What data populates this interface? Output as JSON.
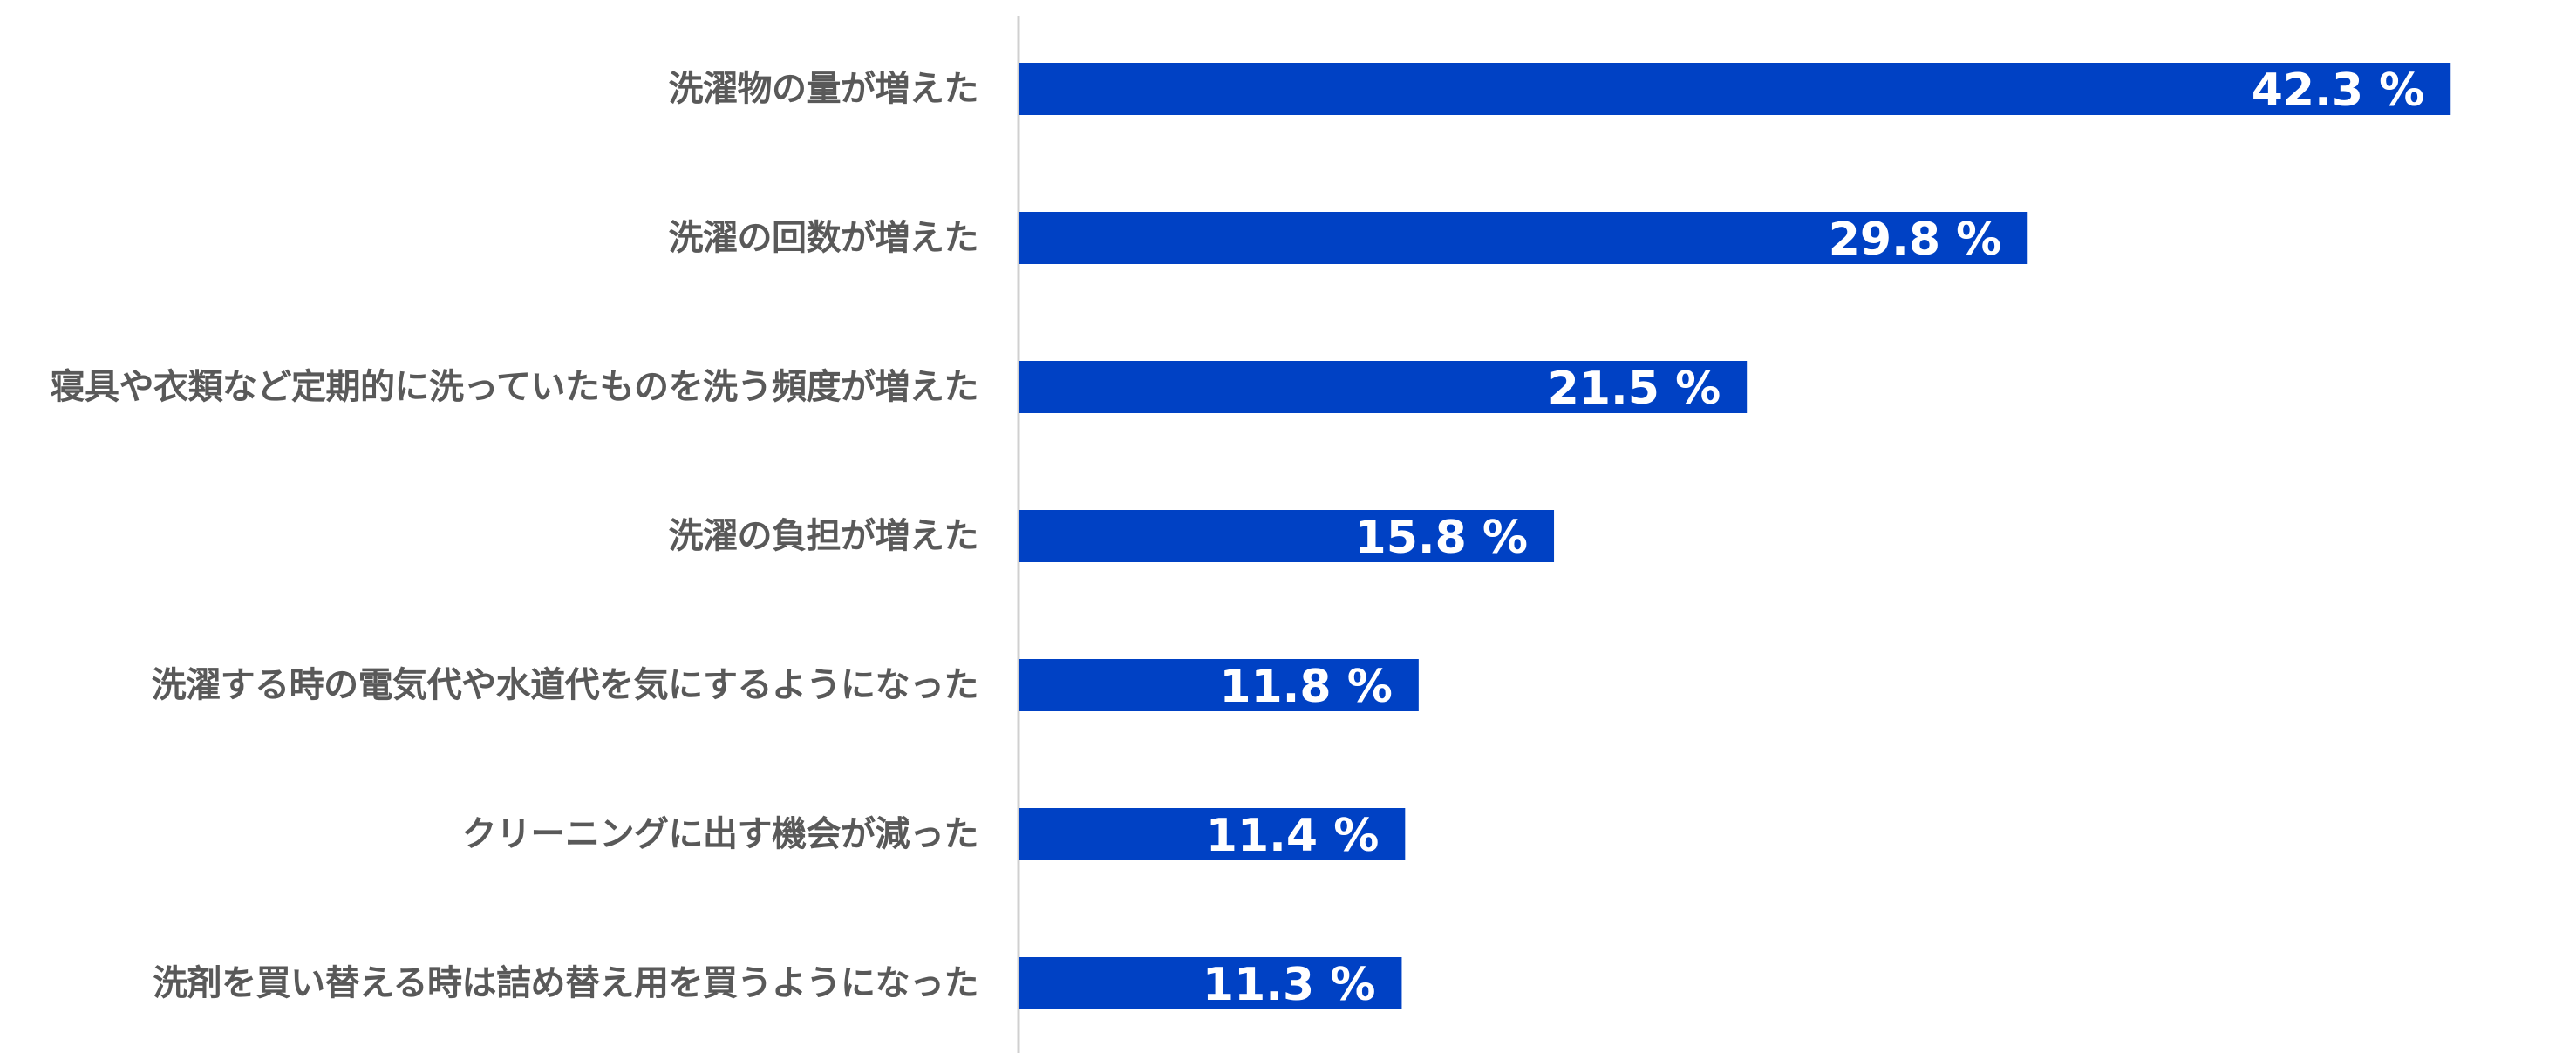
{
  "chart_data": {
    "type": "bar",
    "orientation": "horizontal",
    "categories": [
      "洗濯物の量が増えた",
      "洗濯の回数が増えた",
      "寝具や衣類など定期的に洗っていたものを洗う頻度が増えた",
      "洗濯の負担が増えた",
      "洗濯する時の電気代や水道代を気にするようになった",
      "クリーニングに出す機会が減った",
      "洗剤を買い替える時は詰め替え用を買うようになった"
    ],
    "values": [
      42.3,
      29.8,
      21.5,
      15.8,
      11.8,
      11.4,
      11.3
    ],
    "data_labels": [
      "42.3 %",
      "29.8 %",
      "21.5 %",
      "15.8 %",
      "11.8 %",
      "11.4 %",
      "11.3 %"
    ],
    "xlim": [
      0,
      50
    ],
    "grid": false,
    "legend": "none",
    "bar_color": "#0041C4",
    "label_color": "#595959",
    "data_label_color": "#ffffff",
    "axis_line_color": "#d0d0d0"
  }
}
